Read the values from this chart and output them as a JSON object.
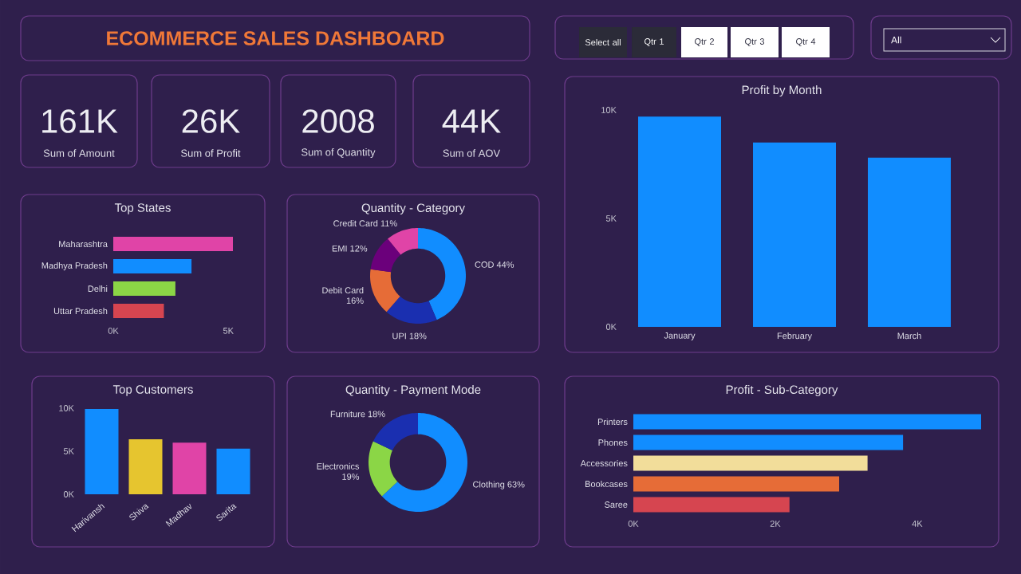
{
  "chart_data": [
    {
      "type": "other",
      "title": "ECOMMERCE SALES DASHBOARD",
      "annotations": [
        "Select all",
        "Qtr 1",
        "Qtr 2",
        "Qtr 3",
        "Qtr 4",
        "All"
      ]
    },
    {
      "type": "other",
      "categories": [
        "Sum of Amount",
        "Sum of Profit",
        "Sum of Quantity",
        "Sum of AOV"
      ],
      "value_labels": [
        "161K",
        "26K",
        "2008",
        "44K"
      ]
    },
    {
      "type": "bar",
      "title": "Profit by Month",
      "categories": [
        "January",
        "February",
        "March"
      ],
      "values": [
        9700,
        8500,
        7800
      ],
      "color": "#118dff",
      "ylim": [
        0,
        10000
      ],
      "yticks": [
        {
          "value": 0,
          "label": "0K"
        },
        {
          "value": 5000,
          "label": "5K"
        },
        {
          "value": 10000,
          "label": "10K"
        }
      ]
    },
    {
      "type": "bar",
      "orientation": "horizontal",
      "title": "Top States",
      "categories": [
        "Maharashtra",
        "Madhya Pradesh",
        "Delhi",
        "Uttar Pradesh"
      ],
      "values": [
        5200,
        3400,
        2700,
        2200
      ],
      "colors": [
        "#e044a7",
        "#118dff",
        "#8bd646",
        "#d64550"
      ],
      "xlim": [
        0,
        5200
      ],
      "xticks": [
        {
          "value": 0,
          "label": "0K"
        },
        {
          "value": 5000,
          "label": "5K"
        }
      ]
    },
    {
      "type": "donut",
      "title": "Quantity - Category",
      "categories": [
        "COD",
        "UPI",
        "Debit Card",
        "EMI",
        "Credit Card"
      ],
      "values": [
        44,
        18,
        16,
        12,
        11
      ],
      "value_labels": [
        "44%",
        "18%",
        "16%",
        "12%",
        "11%"
      ],
      "colors": [
        "#118dff",
        "#1a2fb0",
        "#e66c37",
        "#6b007b",
        "#e044a7"
      ]
    },
    {
      "type": "bar",
      "title": "Top Customers",
      "categories": [
        "Harivansh",
        "Shiva",
        "Madhav",
        "Sarita"
      ],
      "values": [
        9900,
        6400,
        6000,
        5300
      ],
      "colors": [
        "#118dff",
        "#e6c52f",
        "#e044a7",
        "#118dff"
      ],
      "ylim": [
        0,
        10000
      ],
      "yticks": [
        {
          "value": 0,
          "label": "0K"
        },
        {
          "value": 5000,
          "label": "5K"
        },
        {
          "value": 10000,
          "label": "10K"
        }
      ]
    },
    {
      "type": "donut",
      "title": "Quantity - Payment Mode",
      "categories": [
        "Clothing",
        "Electronics",
        "Furniture"
      ],
      "values": [
        63,
        19,
        18
      ],
      "value_labels": [
        "63%",
        "19%",
        "18%"
      ],
      "colors": [
        "#118dff",
        "#8bd646",
        "#1a2fb0"
      ]
    },
    {
      "type": "bar",
      "orientation": "horizontal",
      "title": "Profit - Sub-Category",
      "categories": [
        "Printers",
        "Phones",
        "Accessories",
        "Bookcases",
        "Saree"
      ],
      "values": [
        4900,
        3800,
        3300,
        2900,
        2200
      ],
      "colors": [
        "#118dff",
        "#118dff",
        "#f2dd9a",
        "#e66c37",
        "#d64550"
      ],
      "xlim": [
        0,
        4900
      ],
      "xticks": [
        {
          "value": 0,
          "label": "0K"
        },
        {
          "value": 2000,
          "label": "2K"
        },
        {
          "value": 4000,
          "label": "4K"
        }
      ]
    }
  ]
}
